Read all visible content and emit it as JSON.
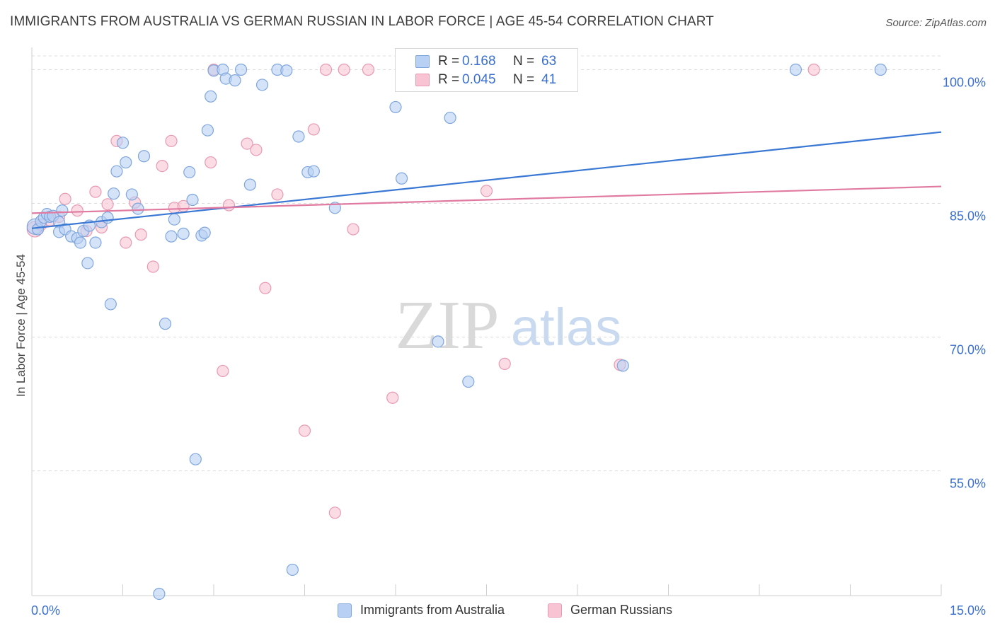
{
  "title": "IMMIGRANTS FROM AUSTRALIA VS GERMAN RUSSIAN IN LABOR FORCE | AGE 45-54 CORRELATION CHART",
  "source": "Source: ZipAtlas.com",
  "watermark": {
    "zip": "ZIP",
    "atlas": "atlas"
  },
  "stats": [
    {
      "r_label": "R = ",
      "r_value": "0.168",
      "n_label": "N = ",
      "n_value": "63",
      "color": "#b8d0f3"
    },
    {
      "r_label": "R = ",
      "r_value": "0.045",
      "n_label": "N = ",
      "n_value": "41",
      "color": "#f8c4d4"
    }
  ],
  "legend": [
    {
      "label": "Immigrants from Australia",
      "color": "#b8d0f3"
    },
    {
      "label": "German Russians",
      "color": "#f8c4d4"
    }
  ],
  "chart_data": {
    "type": "scatter",
    "title": "IMMIGRANTS FROM AUSTRALIA VS GERMAN RUSSIAN IN LABOR FORCE | AGE 45-54 CORRELATION CHART",
    "xlabel": "",
    "ylabel": "In Labor Force | Age 45-54",
    "xlim": [
      0,
      15
    ],
    "ylim": [
      41,
      102.5
    ],
    "x_tick_labels": [
      {
        "value": 0,
        "label": "0.0%"
      },
      {
        "value": 15,
        "label": "15.0%"
      }
    ],
    "y_tick_labels": [
      {
        "value": 100,
        "label": "100.0%"
      },
      {
        "value": 85,
        "label": "85.0%"
      },
      {
        "value": 70,
        "label": "70.0%"
      },
      {
        "value": 55,
        "label": "55.0%"
      }
    ],
    "grid": true,
    "legend_position": "bottom",
    "series": [
      {
        "name": "Immigrants from Australia",
        "color": "#7fa6dd",
        "fill": "#b8d0f3",
        "trend": {
          "x": [
            0,
            15
          ],
          "y": [
            82.2,
            93.0
          ],
          "color": "#3a78d4"
        },
        "points": [
          [
            0.05,
            82.4
          ],
          [
            0.1,
            82.1
          ],
          [
            0.15,
            83.0
          ],
          [
            0.2,
            83.4
          ],
          [
            0.25,
            83.8
          ],
          [
            0.3,
            83.5
          ],
          [
            0.35,
            83.6
          ],
          [
            0.45,
            82.9
          ],
          [
            0.5,
            84.2
          ],
          [
            0.45,
            81.8
          ],
          [
            0.55,
            82.1
          ],
          [
            0.65,
            81.3
          ],
          [
            0.75,
            81.1
          ],
          [
            0.8,
            80.6
          ],
          [
            0.85,
            81.9
          ],
          [
            0.92,
            78.3
          ],
          [
            0.95,
            82.5
          ],
          [
            1.05,
            80.6
          ],
          [
            1.15,
            82.9
          ],
          [
            1.25,
            83.4
          ],
          [
            1.3,
            73.7
          ],
          [
            1.35,
            86.1
          ],
          [
            1.4,
            88.6
          ],
          [
            1.5,
            91.8
          ],
          [
            1.55,
            89.6
          ],
          [
            1.65,
            86.0
          ],
          [
            1.75,
            84.4
          ],
          [
            1.85,
            90.3
          ],
          [
            2.1,
            41.2
          ],
          [
            2.2,
            71.5
          ],
          [
            2.3,
            81.3
          ],
          [
            2.35,
            83.2
          ],
          [
            2.5,
            81.6
          ],
          [
            2.6,
            88.5
          ],
          [
            2.65,
            85.4
          ],
          [
            2.7,
            56.3
          ],
          [
            2.8,
            81.4
          ],
          [
            2.85,
            81.7
          ],
          [
            2.9,
            93.2
          ],
          [
            2.95,
            97.0
          ],
          [
            3.0,
            99.9
          ],
          [
            3.15,
            100.0
          ],
          [
            3.2,
            99.0
          ],
          [
            3.35,
            98.8
          ],
          [
            3.45,
            100.0
          ],
          [
            3.6,
            87.1
          ],
          [
            3.8,
            98.3
          ],
          [
            4.05,
            100.0
          ],
          [
            4.2,
            99.9
          ],
          [
            4.3,
            43.9
          ],
          [
            4.4,
            92.5
          ],
          [
            4.55,
            88.5
          ],
          [
            4.65,
            88.6
          ],
          [
            5.0,
            84.5
          ],
          [
            6.0,
            95.8
          ],
          [
            6.1,
            87.8
          ],
          [
            6.5,
            100.0
          ],
          [
            6.7,
            69.5
          ],
          [
            6.9,
            94.6
          ],
          [
            7.2,
            65.0
          ],
          [
            9.75,
            66.8
          ],
          [
            12.6,
            100.0
          ],
          [
            14.0,
            100.0
          ]
        ]
      },
      {
        "name": "German Russians",
        "color": "#e79ab3",
        "fill": "#f8c4d4",
        "trend": {
          "x": [
            0,
            15
          ],
          "y": [
            83.9,
            86.9
          ],
          "color": "#e07aa0"
        },
        "points": [
          [
            0.05,
            82.1
          ],
          [
            0.15,
            82.6
          ],
          [
            0.3,
            83.1
          ],
          [
            0.45,
            83.5
          ],
          [
            0.55,
            85.5
          ],
          [
            0.75,
            84.2
          ],
          [
            0.9,
            81.9
          ],
          [
            1.05,
            86.3
          ],
          [
            1.15,
            82.3
          ],
          [
            1.25,
            84.9
          ],
          [
            1.4,
            92.0
          ],
          [
            1.55,
            80.6
          ],
          [
            1.7,
            85.1
          ],
          [
            1.8,
            81.5
          ],
          [
            2.0,
            77.9
          ],
          [
            2.15,
            89.2
          ],
          [
            2.3,
            92.0
          ],
          [
            2.35,
            84.5
          ],
          [
            2.5,
            84.7
          ],
          [
            2.95,
            89.6
          ],
          [
            3.0,
            100.0
          ],
          [
            3.15,
            66.2
          ],
          [
            3.25,
            84.8
          ],
          [
            3.55,
            91.7
          ],
          [
            3.7,
            91.0
          ],
          [
            3.85,
            75.5
          ],
          [
            4.05,
            86.0
          ],
          [
            4.5,
            59.5
          ],
          [
            4.65,
            93.3
          ],
          [
            4.85,
            100.0
          ],
          [
            5.0,
            50.3
          ],
          [
            5.15,
            100.0
          ],
          [
            5.3,
            82.1
          ],
          [
            5.55,
            100.0
          ],
          [
            5.95,
            63.2
          ],
          [
            6.1,
            100.0
          ],
          [
            6.4,
            100.0
          ],
          [
            7.5,
            86.4
          ],
          [
            7.8,
            67.0
          ],
          [
            9.7,
            66.9
          ],
          [
            12.9,
            100.0
          ]
        ]
      }
    ]
  }
}
